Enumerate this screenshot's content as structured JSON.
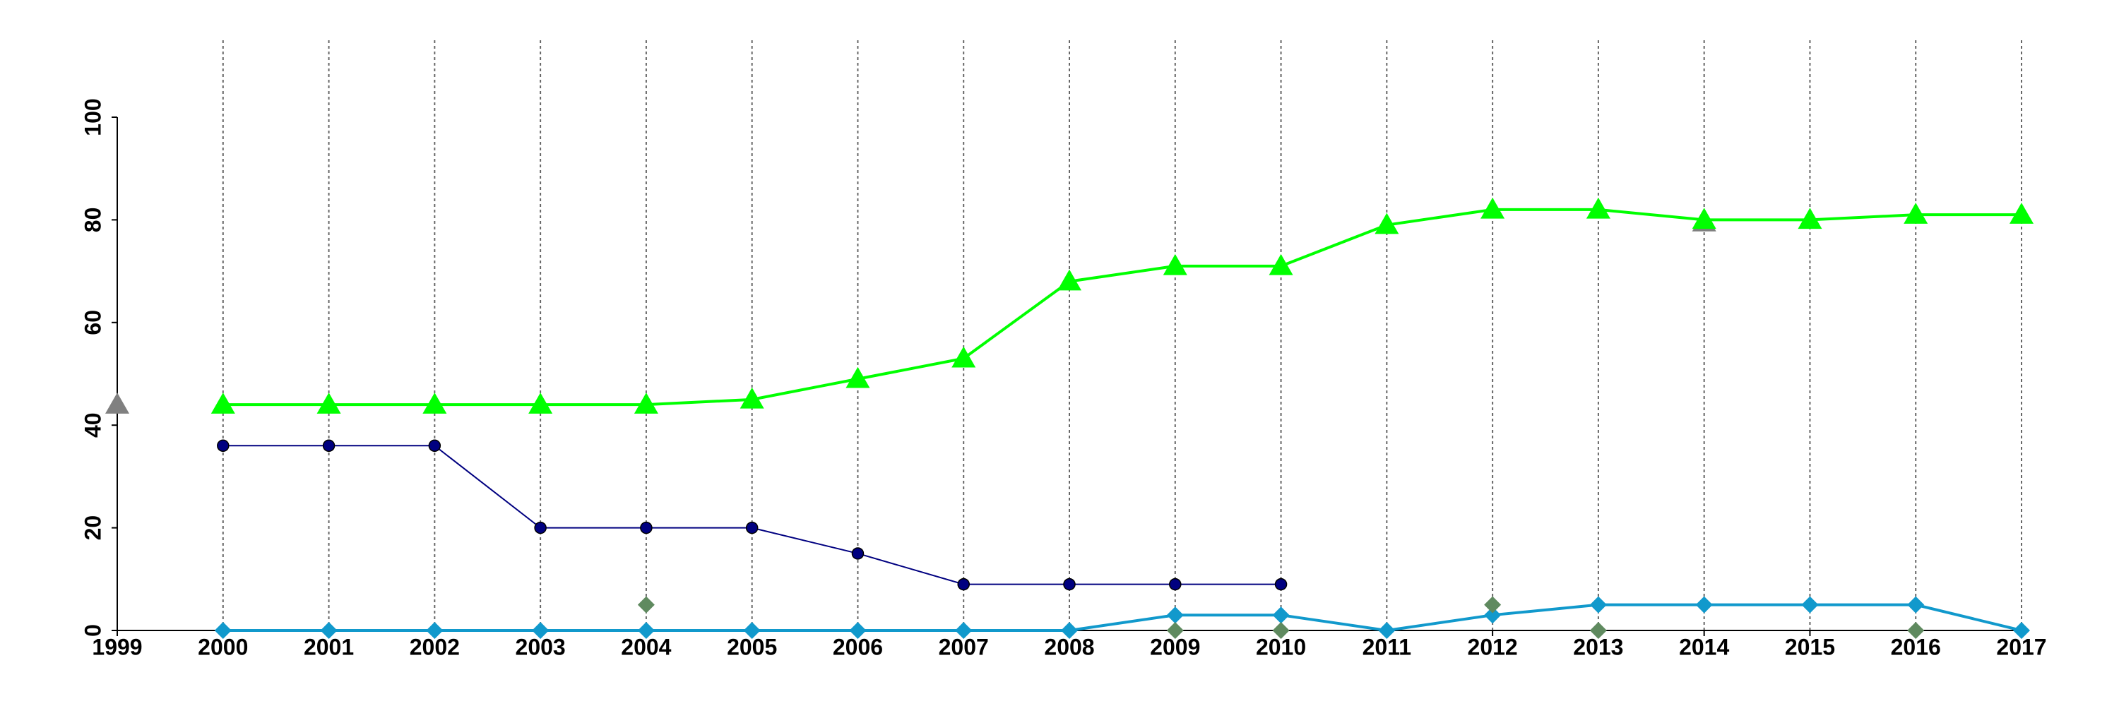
{
  "chart_data": {
    "type": "line",
    "x": [
      1999,
      2000,
      2001,
      2002,
      2003,
      2004,
      2005,
      2006,
      2007,
      2008,
      2009,
      2010,
      2011,
      2012,
      2013,
      2014,
      2015,
      2016,
      2017
    ],
    "series": [
      {
        "color": "#808080",
        "marker": "triangle",
        "line": false,
        "values": [
          44,
          null,
          null,
          null,
          null,
          null,
          null,
          null,
          null,
          null,
          null,
          null,
          null,
          null,
          null,
          79.5,
          null,
          null,
          null
        ]
      },
      {
        "color": "#00ff00",
        "marker": "triangle",
        "line": true,
        "values": [
          null,
          44,
          44,
          44,
          44,
          44,
          45,
          49,
          53,
          68,
          71,
          71,
          79,
          82,
          82,
          80,
          80,
          81,
          81
        ]
      },
      {
        "color": "#000080",
        "marker": "circle",
        "line": true,
        "values": [
          null,
          36,
          36,
          36,
          20,
          20,
          20,
          15,
          9,
          9,
          9,
          9,
          null,
          null,
          null,
          null,
          null,
          null,
          null
        ]
      },
      {
        "color": "#1199cc",
        "marker": "diamond",
        "line": true,
        "values": [
          null,
          0,
          0,
          0,
          0,
          0,
          0,
          0,
          0,
          0,
          3,
          3,
          0,
          3,
          5,
          5,
          5,
          5,
          0
        ]
      },
      {
        "color": "#5f8a5f",
        "marker": "diamond",
        "line": false,
        "values": [
          null,
          null,
          null,
          null,
          null,
          5,
          null,
          null,
          null,
          null,
          0,
          0,
          null,
          5,
          0,
          null,
          null,
          0,
          null
        ]
      }
    ],
    "xlim": [
      1999,
      2017
    ],
    "xticks": [
      1999,
      2000,
      2001,
      2002,
      2003,
      2004,
      2005,
      2006,
      2007,
      2008,
      2009,
      2010,
      2011,
      2012,
      2013,
      2014,
      2015,
      2016,
      2017
    ],
    "ylim": [
      0,
      100
    ],
    "yticks": [
      0,
      20,
      40,
      60,
      80,
      100
    ],
    "grid": "x"
  }
}
